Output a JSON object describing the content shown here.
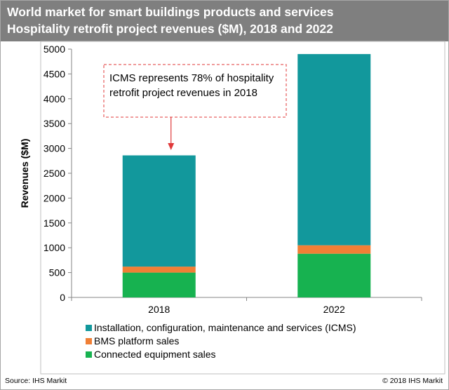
{
  "header": {
    "title": "World market for smart buildings products and services",
    "subtitle": "Hospitality retrofit project revenues ($M), 2018 and 2022"
  },
  "footer": {
    "source": "Source: IHS Markit",
    "copyright": "© 2018 IHS Markit"
  },
  "colors": {
    "title_bar": "#7f7f7f",
    "icms": "#12989c",
    "bms": "#f07f35",
    "connected": "#17b250",
    "callout_border": "#e0393a",
    "arrow": "#e0393a"
  },
  "chart_data": {
    "type": "bar",
    "stacked": true,
    "categories": [
      "2018",
      "2022"
    ],
    "series": [
      {
        "name": "Connected equipment sales",
        "color": "#17b250",
        "values": [
          500,
          880
        ]
      },
      {
        "name": "BMS platform sales",
        "color": "#f07f35",
        "values": [
          120,
          170
        ]
      },
      {
        "name": "Installation, configuration, maintenance and services (ICMS)",
        "color": "#12989c",
        "values": [
          2240,
          3850
        ]
      }
    ],
    "ylabel": "Revenues ($M)",
    "xlabel": "",
    "ylim": [
      0,
      5000
    ],
    "yticks": [
      "0",
      "500",
      "1000",
      "1500",
      "2000",
      "2500",
      "3000",
      "3500",
      "4000",
      "4500",
      "5000"
    ],
    "grid": false,
    "legend_position": "bottom",
    "annotation": {
      "lines": [
        "ICMS represents 78% of hospitality",
        "retrofit project revenues in 2018"
      ],
      "points_to": "2018"
    }
  }
}
